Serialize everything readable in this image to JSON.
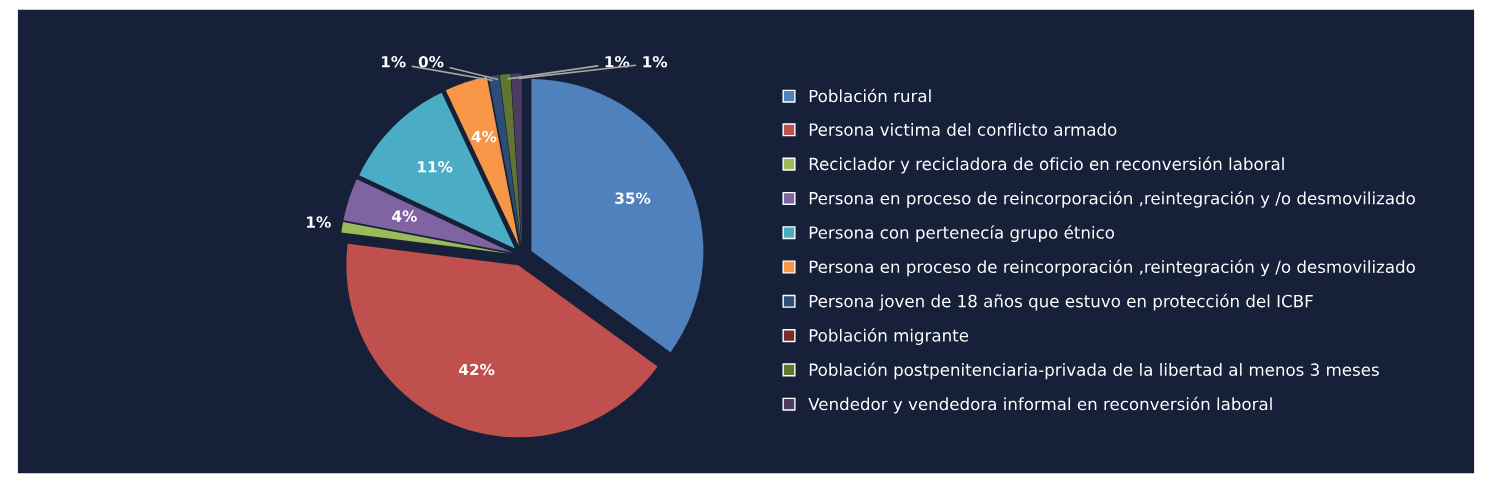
{
  "chart_data": {
    "type": "pie",
    "categories": [
      "Población rural",
      "Persona victima del conflicto armado",
      "Reciclador y recicladora de oficio en reconversión laboral",
      "Persona en proceso de reincorporación ,reintegración y /o desmovilizado",
      "Persona con pertenecía grupo étnico",
      "Persona en proceso de reincorporación ,reintegración y /o desmovilizado",
      "Persona joven de 18 años que estuvo en protección del ICBF",
      "Población migrante",
      "Población postpenitenciaria-privada de la libertad al menos 3 meses",
      "Vendedor y vendedora informal en reconversión laboral"
    ],
    "values": [
      35,
      42,
      1,
      4,
      11,
      4,
      1,
      0,
      1,
      1
    ],
    "colors": [
      "#4f81bd",
      "#c0504d",
      "#9bbb59",
      "#8064a2",
      "#4bacc6",
      "#f79646",
      "#2c4d75",
      "#772c2a",
      "#5f7530",
      "#4d3b62"
    ],
    "value_labels": [
      "35%",
      "42%",
      "1%",
      "4%",
      "11%",
      "4%",
      "1%",
      "0%",
      "1%",
      "1%"
    ],
    "legend": "right"
  }
}
